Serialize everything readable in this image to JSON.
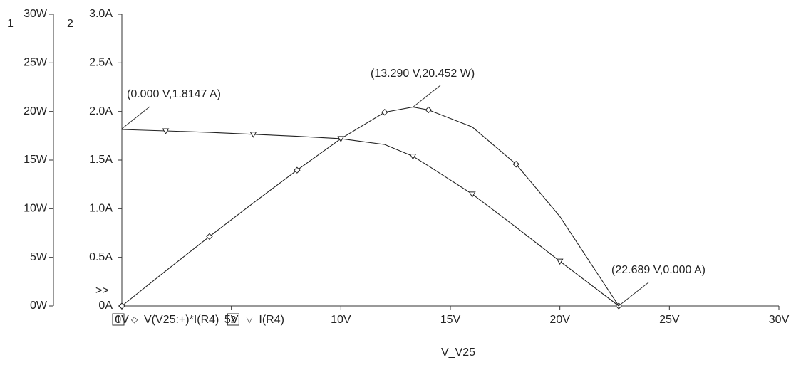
{
  "chart_data": {
    "type": "line",
    "x_label": "V_V25",
    "axis_numbers": [
      "1",
      "2"
    ],
    "cursor_marker": ">>",
    "x": [
      0,
      2,
      4,
      6,
      8,
      10,
      12,
      13.29,
      14,
      16,
      18,
      20,
      22.689
    ],
    "series": [
      {
        "name": "V(V25:+)*I(R4)",
        "symbol": "◇",
        "color": "#222222",
        "values": [
          0,
          3.6,
          7.14,
          10.59,
          13.96,
          17.2,
          19.92,
          20.452,
          20.16,
          18.4,
          14.58,
          9.2,
          0
        ]
      },
      {
        "name": "I(R4)",
        "symbol": "▽",
        "color": "#222222",
        "axis": "y2",
        "values": [
          1.8147,
          1.8,
          1.785,
          1.765,
          1.745,
          1.72,
          1.66,
          1.539,
          1.44,
          1.15,
          0.81,
          0.46,
          0
        ]
      }
    ],
    "xlim": [
      0,
      30
    ],
    "xticks": [
      {
        "value": 0,
        "label": "0V"
      },
      {
        "value": 5,
        "label": "5V"
      },
      {
        "value": 10,
        "label": "10V"
      },
      {
        "value": 15,
        "label": "15V"
      },
      {
        "value": 20,
        "label": "20V"
      },
      {
        "value": 25,
        "label": "25V"
      },
      {
        "value": 30,
        "label": "30V"
      }
    ],
    "ylim": [
      0,
      30
    ],
    "yticks": [
      {
        "value": 0,
        "label": "0W"
      },
      {
        "value": 5,
        "label": "5W"
      },
      {
        "value": 10,
        "label": "10W"
      },
      {
        "value": 15,
        "label": "15W"
      },
      {
        "value": 20,
        "label": "20W"
      },
      {
        "value": 25,
        "label": "25W"
      },
      {
        "value": 30,
        "label": "30W"
      }
    ],
    "y2lim": [
      0,
      3
    ],
    "y2ticks": [
      {
        "value": 0,
        "label": "0A"
      },
      {
        "value": 0.5,
        "label": "0.5A"
      },
      {
        "value": 1,
        "label": "1.0A"
      },
      {
        "value": 1.5,
        "label": "1.5A"
      },
      {
        "value": 2,
        "label": "2.0A"
      },
      {
        "value": 2.5,
        "label": "2.5A"
      },
      {
        "value": 3,
        "label": "3.0A"
      }
    ],
    "annotations": [
      "(0.000 V,1.8147 A)",
      "(13.290 V,20.452 W)",
      "(22.689 V,0.000 A)"
    ]
  }
}
